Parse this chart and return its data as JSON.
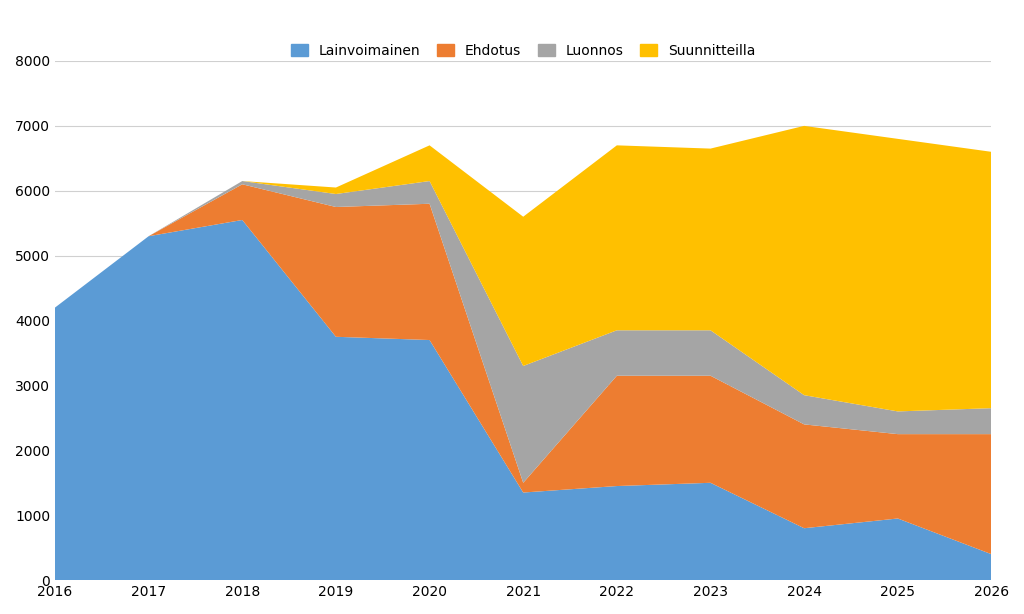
{
  "years": [
    2016,
    2017,
    2018,
    2019,
    2020,
    2021,
    2022,
    2023,
    2024,
    2025,
    2026
  ],
  "lainvoimainen": [
    4200,
    5300,
    5550,
    3750,
    3700,
    1350,
    1450,
    1500,
    800,
    950,
    400
  ],
  "ehdotus": [
    0,
    0,
    550,
    2000,
    2100,
    150,
    1700,
    1650,
    1600,
    1300,
    1850
  ],
  "luonnos": [
    0,
    0,
    50,
    200,
    350,
    1800,
    700,
    700,
    450,
    350,
    400
  ],
  "suunnitteilla": [
    0,
    0,
    0,
    100,
    550,
    2300,
    2850,
    2800,
    4150,
    4200,
    3950
  ],
  "colors": {
    "lainvoimainen": "#5b9bd5",
    "ehdotus": "#ed7d31",
    "luonnos": "#a5a5a5",
    "suunnitteilla": "#ffc000"
  },
  "legend_labels": [
    "Lainvoimainen",
    "Ehdotus",
    "Luonnos",
    "Suunnitteilla"
  ],
  "ylim": [
    0,
    8000
  ],
  "yticks": [
    0,
    1000,
    2000,
    3000,
    4000,
    5000,
    6000,
    7000,
    8000
  ],
  "xlim": [
    2016,
    2026
  ],
  "background_color": "#ffffff",
  "grid_color": "#d0d0d0"
}
